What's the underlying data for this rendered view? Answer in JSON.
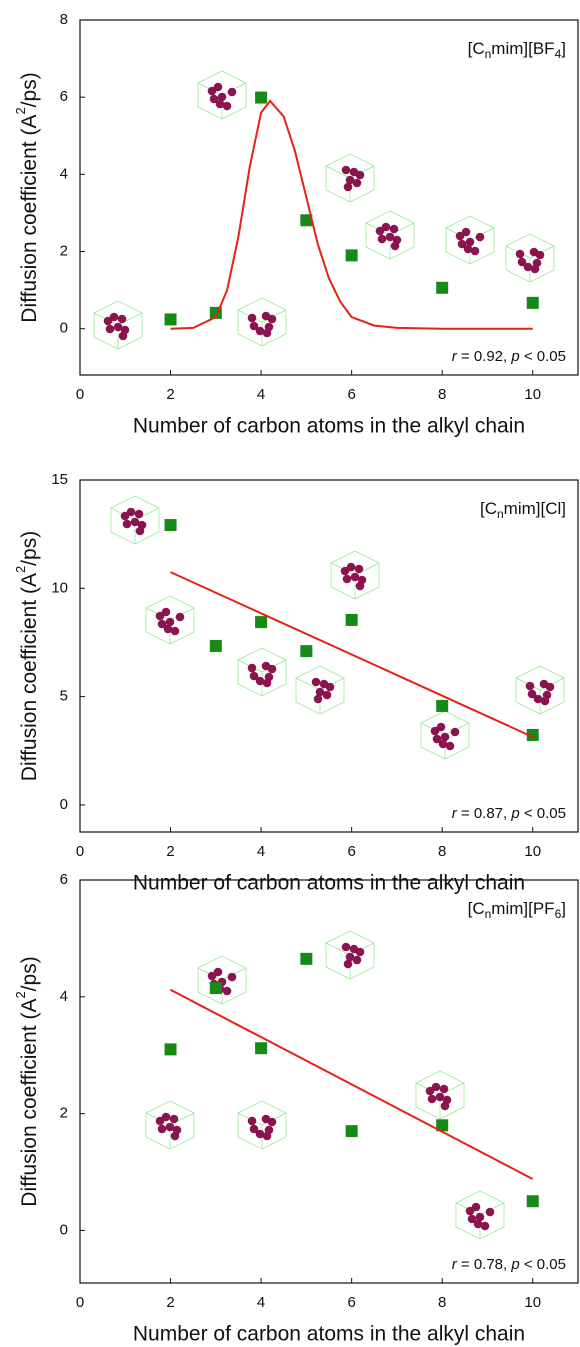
{
  "chart_data": [
    {
      "type": "scatter",
      "title_parts": [
        "[C",
        "n",
        "mim][BF",
        "4",
        "]"
      ],
      "stats_parts": [
        "r",
        " = 0.92, ",
        "p",
        " < 0.05"
      ],
      "x_label": "Number of carbon atoms in the alkyl chain",
      "y_label_parts": [
        "Diffusion coefficient (A",
        "2",
        "/ps)"
      ],
      "xlim": [
        0,
        11
      ],
      "xticks": [
        0,
        2,
        4,
        6,
        8,
        10
      ],
      "ylim": [
        -1.2,
        8
      ],
      "yticks": [
        0,
        2,
        4,
        6,
        8
      ],
      "series": [
        {
          "color": "#168a16",
          "marker": "square",
          "x": [
            2,
            3,
            4,
            5,
            6,
            8,
            10
          ],
          "values": [
            0.24,
            0.41,
            5.99,
            2.81,
            1.9,
            1.06,
            0.67
          ]
        },
        {
          "color": "#e62117",
          "marker": "line",
          "x": [
            2,
            2.5,
            3,
            3.25,
            3.5,
            3.75,
            4,
            4.2,
            4.5,
            4.75,
            5,
            5.25,
            5.5,
            5.75,
            6,
            6.5,
            7,
            8,
            10
          ],
          "values": [
            0,
            0.02,
            0.3,
            1.0,
            2.4,
            4.2,
            5.6,
            5.9,
            5.5,
            4.6,
            3.4,
            2.2,
            1.3,
            0.7,
            0.3,
            0.08,
            0.02,
            0,
            0
          ]
        }
      ]
    },
    {
      "type": "scatter",
      "title_parts": [
        "[C",
        "n",
        "mim][Cl]"
      ],
      "stats_parts": [
        "r",
        " = 0.87, ",
        "p",
        " < 0.05"
      ],
      "x_label": "Number of carbon atoms in the alkyl chain",
      "y_label_parts": [
        "Diffusion coefficient (A",
        "2",
        "/ps)"
      ],
      "xlim": [
        0,
        11
      ],
      "xticks": [
        0,
        2,
        4,
        6,
        8,
        10
      ],
      "ylim": [
        -1.25,
        15
      ],
      "yticks": [
        0,
        5,
        10,
        15
      ],
      "series": [
        {
          "color": "#168a16",
          "marker": "square",
          "x": [
            2,
            3,
            4,
            5,
            6,
            8,
            10
          ],
          "values": [
            12.92,
            7.34,
            8.44,
            7.1,
            8.54,
            4.57,
            3.23
          ]
        },
        {
          "color": "#e62117",
          "marker": "line",
          "x": [
            2,
            10
          ],
          "values": [
            10.75,
            3.14
          ]
        }
      ]
    },
    {
      "type": "scatter",
      "title_parts": [
        "[C",
        "n",
        "mim][PF",
        "6",
        "]"
      ],
      "stats_parts": [
        "r",
        " = 0.78, ",
        "p",
        " < 0.05"
      ],
      "x_label": "Number of carbon atoms in the alkyl chain",
      "y_label_parts": [
        "Diffusion coefficient (A",
        "2",
        "/ps)"
      ],
      "xlim": [
        0,
        11
      ],
      "xticks": [
        0,
        2,
        4,
        6,
        8,
        10
      ],
      "ylim": [
        -0.9,
        6
      ],
      "yticks": [
        0,
        2,
        4,
        6
      ],
      "series": [
        {
          "color": "#168a16",
          "marker": "square",
          "x": [
            2,
            3,
            4,
            5,
            6,
            8,
            10
          ],
          "values": [
            3.1,
            4.15,
            3.12,
            4.65,
            1.7,
            1.8,
            0.5
          ]
        },
        {
          "color": "#e62117",
          "marker": "line",
          "x": [
            2,
            10
          ],
          "values": [
            4.12,
            0.88
          ]
        }
      ]
    }
  ]
}
